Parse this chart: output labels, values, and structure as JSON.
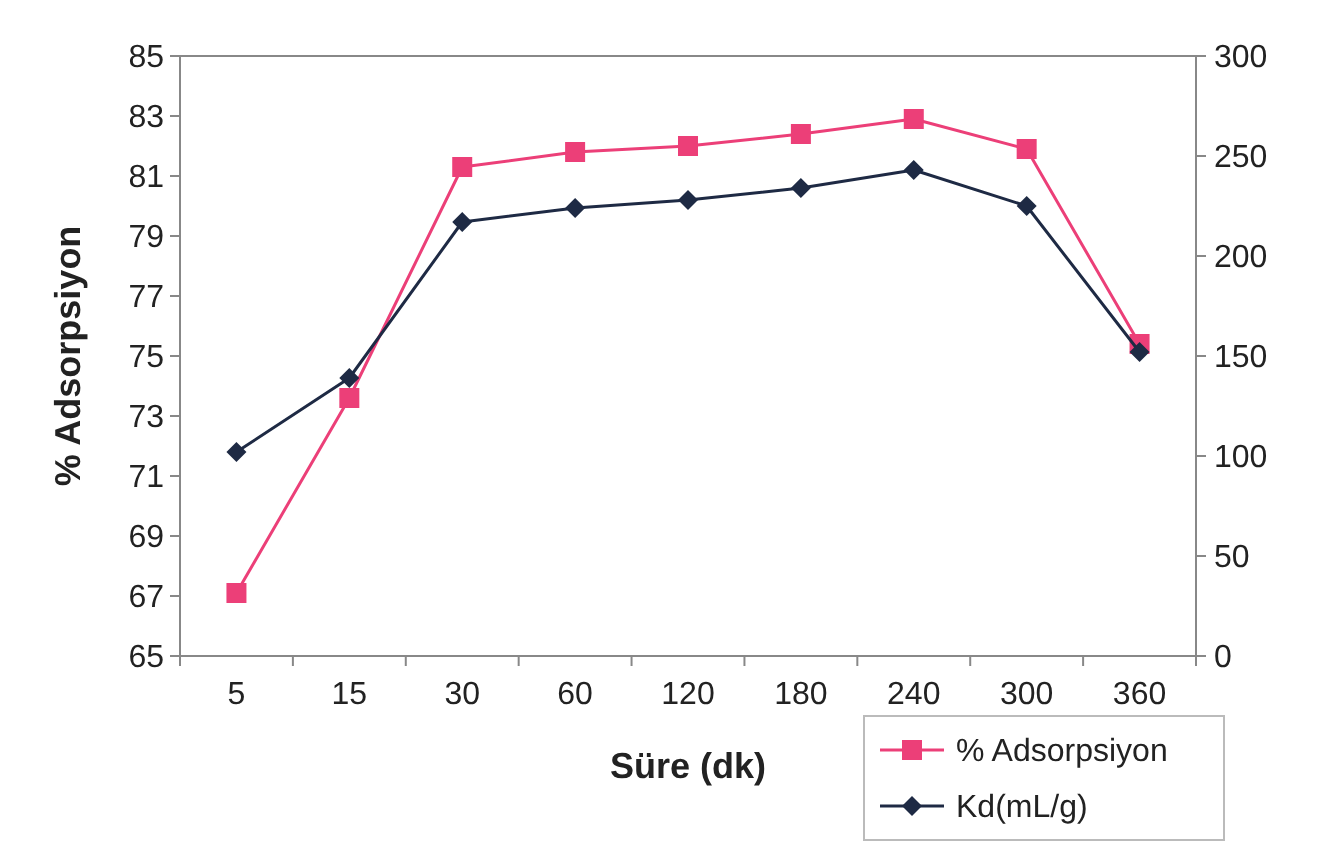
{
  "chart_data": {
    "type": "line",
    "xlabel": "Süre (dk)",
    "ylabel": "% Adsorpsiyon",
    "categories": [
      "5",
      "15",
      "30",
      "60",
      "120",
      "180",
      "240",
      "300",
      "360"
    ],
    "ylim": [
      65,
      85
    ],
    "yticks": [
      65,
      67,
      69,
      71,
      73,
      75,
      77,
      79,
      81,
      83,
      85
    ],
    "y2lim": [
      0,
      300
    ],
    "y2ticks": [
      0,
      50,
      100,
      150,
      200,
      250,
      300
    ],
    "legend": "bottom right",
    "grid": false,
    "series": [
      {
        "name": "% Adsorpsiyon",
        "color": "#ec3f78",
        "marker": "square",
        "values": [
          67.1,
          73.6,
          81.3,
          81.8,
          82.0,
          82.4,
          82.9,
          81.9,
          75.4
        ]
      },
      {
        "name": "Kd(mL/g)",
        "color": "#1e2a44",
        "marker": "diamond",
        "axis": "y2",
        "values": [
          102,
          139,
          217,
          224,
          228,
          234,
          243,
          225,
          152
        ]
      }
    ]
  }
}
